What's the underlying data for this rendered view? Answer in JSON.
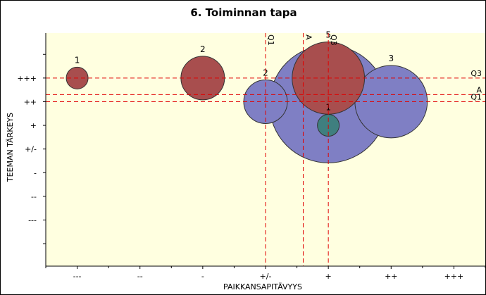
{
  "chart_data": {
    "type": "scatter",
    "title": "6. Toiminnan tapa",
    "xlabel": "PAIKKANSAPITÄVYYS",
    "ylabel": "TEEMAN TÄRKEYS",
    "x_tick_labels": [
      "---",
      "--",
      "-",
      "+/-",
      "+",
      "++",
      "+++"
    ],
    "x_tick_values": [
      1,
      2,
      3,
      4,
      5,
      6,
      7
    ],
    "xlim": [
      0.5,
      7.5
    ],
    "y_tick_labels": [
      "---",
      "--",
      "-",
      "+/-",
      "+",
      "++",
      "+++"
    ],
    "y_tick_values": [
      1,
      2,
      3,
      4,
      5,
      6,
      7
    ],
    "ylim": [
      -0.95,
      8.9
    ],
    "grid": false,
    "colors": {
      "plot_background": "#ffffe0",
      "series_red": "#a84e4e",
      "series_blue": "#7f7fc4",
      "series_teal": "#3f7f7f",
      "reference_line": "#e00000"
    },
    "series": [
      {
        "name": "red",
        "color": "#a84e4e",
        "points": [
          {
            "label": "1",
            "x": 1.0,
            "y": 7.0,
            "size": 1
          },
          {
            "label": "2",
            "x": 3.0,
            "y": 7.0,
            "size": 4
          },
          {
            "label": "5",
            "x": 5.0,
            "y": 7.0,
            "size": 11
          }
        ]
      },
      {
        "name": "blue",
        "color": "#7f7fc4",
        "points": [
          {
            "label": "",
            "x": 5.0,
            "y": 5.9,
            "size": 29
          },
          {
            "label": "2",
            "x": 4.0,
            "y": 6.0,
            "size": 4
          },
          {
            "label": "3",
            "x": 6.0,
            "y": 6.0,
            "size": 11
          }
        ]
      },
      {
        "name": "teal",
        "color": "#3f7f7f",
        "points": [
          {
            "label": "1",
            "x": 5.0,
            "y": 5.0,
            "size": 1
          }
        ]
      }
    ],
    "reference_lines": {
      "vertical": [
        {
          "label": "Q1",
          "x": 4.0
        },
        {
          "label": "A",
          "x": 4.6
        },
        {
          "label": "Q3",
          "x": 5.0
        }
      ],
      "horizontal": [
        {
          "label": "Q3",
          "y": 7.0
        },
        {
          "label": "A",
          "y": 6.3
        },
        {
          "label": "Q1",
          "y": 6.0
        }
      ]
    }
  }
}
